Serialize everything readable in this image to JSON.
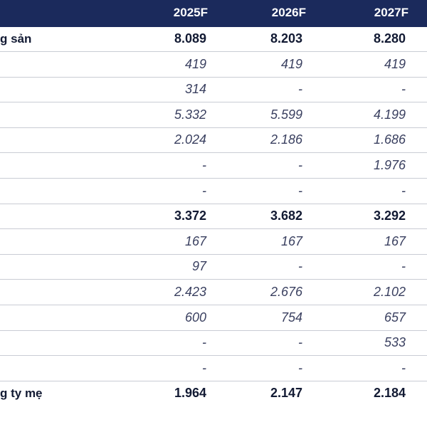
{
  "header": {
    "columns": [
      "2025F",
      "2026F",
      "2027F"
    ]
  },
  "rows": [
    {
      "label": "g sản",
      "style": "bold",
      "values": [
        "8.089",
        "8.203",
        "8.280"
      ]
    },
    {
      "label": "",
      "style": "italic",
      "values": [
        "419",
        "419",
        "419"
      ]
    },
    {
      "label": "",
      "style": "italic",
      "values": [
        "314",
        "-",
        "-"
      ]
    },
    {
      "label": "",
      "style": "italic",
      "values": [
        "5.332",
        "5.599",
        "4.199"
      ]
    },
    {
      "label": "",
      "style": "italic",
      "values": [
        "2.024",
        "2.186",
        "1.686"
      ]
    },
    {
      "label": "",
      "style": "italic",
      "values": [
        "-",
        "-",
        "1.976"
      ]
    },
    {
      "label": "",
      "style": "italic",
      "values": [
        "-",
        "-",
        "-"
      ]
    },
    {
      "label": "",
      "style": "bold",
      "values": [
        "3.372",
        "3.682",
        "3.292"
      ]
    },
    {
      "label": "",
      "style": "italic",
      "values": [
        "167",
        "167",
        "167"
      ]
    },
    {
      "label": "",
      "style": "italic",
      "values": [
        "97",
        "-",
        "-"
      ]
    },
    {
      "label": "",
      "style": "italic",
      "values": [
        "2.423",
        "2.676",
        "2.102"
      ]
    },
    {
      "label": "",
      "style": "italic",
      "values": [
        "600",
        "754",
        "657"
      ]
    },
    {
      "label": "",
      "style": "italic",
      "values": [
        "-",
        "-",
        "533"
      ]
    },
    {
      "label": "",
      "style": "italic",
      "values": [
        "-",
        "-",
        "-"
      ]
    },
    {
      "label": "g ty mẹ",
      "style": "bold",
      "values": [
        "1.964",
        "2.147",
        "2.184"
      ]
    }
  ],
  "colors": {
    "header_bg": "#1b2a5c",
    "header_text": "#ffffff",
    "row_border": "#c9ccd4"
  }
}
